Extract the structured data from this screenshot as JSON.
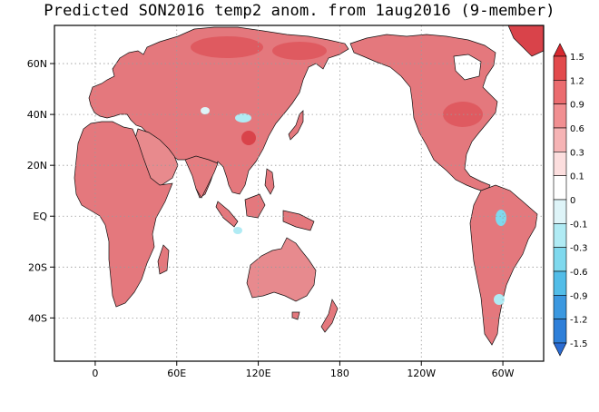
{
  "title": "Predicted SON2016 temp2 anom. from 1aug2016 (9-member)",
  "map": {
    "projection": "cylindrical equidistant, Pacific-centered",
    "lon_range": [
      -30,
      330
    ],
    "lat_range": [
      -57,
      75
    ],
    "x_ticks": [
      {
        "lon": 0,
        "label": "0"
      },
      {
        "lon": 60,
        "label": "60E"
      },
      {
        "lon": 120,
        "label": "120E"
      },
      {
        "lon": 180,
        "label": "180"
      },
      {
        "lon": 240,
        "label": "120W"
      },
      {
        "lon": 300,
        "label": "60W"
      }
    ],
    "y_ticks": [
      {
        "lat": 60,
        "label": "60N"
      },
      {
        "lat": 40,
        "label": "40N"
      },
      {
        "lat": 20,
        "label": "20N"
      },
      {
        "lat": 0,
        "label": "EQ"
      },
      {
        "lat": -20,
        "label": "20S"
      },
      {
        "lat": -40,
        "label": "40S"
      }
    ],
    "grid": "dotted",
    "land_fill": "#e5757b",
    "regions": [
      {
        "name": "Eurasia",
        "value": 0.9
      },
      {
        "name": "Africa",
        "value": 0.8
      },
      {
        "name": "Arabia",
        "value": 0.7
      },
      {
        "name": "India",
        "value": 0.7
      },
      {
        "name": "Australia",
        "value": 0.7
      },
      {
        "name": "North America",
        "value": 0.8
      },
      {
        "name": "South America",
        "value": 0.7
      },
      {
        "name": "Greenland",
        "value": 1.2
      }
    ],
    "cool_spots": [
      {
        "name": "Tibet",
        "value": -0.1
      },
      {
        "name": "Amazon",
        "value": -0.3
      },
      {
        "name": "Indonesia",
        "value": -0.2
      },
      {
        "name": "Uruguay",
        "value": -0.2
      }
    ]
  },
  "colorbar": {
    "levels": [
      1.5,
      1.2,
      0.9,
      0.6,
      0.3,
      0.1,
      0,
      -0.1,
      -0.3,
      -0.6,
      -0.9,
      -1.2,
      -1.5
    ],
    "labels": [
      "1.5",
      "1.2",
      "0.9",
      "0.6",
      "0.3",
      "0.1",
      "0",
      "-0.1",
      "-0.3",
      "-0.6",
      "-0.9",
      "-1.2",
      "-1.5"
    ],
    "colors": [
      "#d7282f",
      "#e24a4c",
      "#eb6c6f",
      "#f18f91",
      "#f6b4b5",
      "#fcdede",
      "#ffffff",
      "#def4f8",
      "#b0ebf4",
      "#7fd9ee",
      "#52bde8",
      "#3b98e0",
      "#2e7fd9",
      "#2a6bd2"
    ]
  }
}
